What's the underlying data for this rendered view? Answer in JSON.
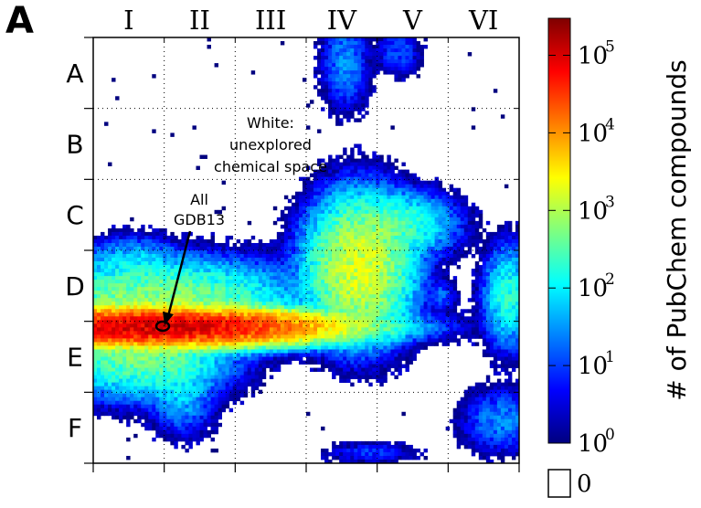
{
  "chart_data": {
    "type": "heatmap",
    "panel_label": "A",
    "column_labels": [
      "I",
      "II",
      "III",
      "IV",
      "V",
      "VI"
    ],
    "row_labels": [
      "A",
      "B",
      "C",
      "D",
      "E",
      "F"
    ],
    "annotations": [
      {
        "lines": [
          "White:",
          "unexplored",
          "chemical space"
        ]
      },
      {
        "lines": [
          "All",
          "GDB13"
        ]
      }
    ],
    "colorbar": {
      "label": "# of PubChem compounds",
      "scale": "log",
      "range": [
        1,
        300000
      ],
      "ticks": [
        {
          "base": "10",
          "exp": "0",
          "value": 1
        },
        {
          "base": "10",
          "exp": "1",
          "value": 10
        },
        {
          "base": "10",
          "exp": "2",
          "value": 100
        },
        {
          "base": "10",
          "exp": "3",
          "value": 1000
        },
        {
          "base": "10",
          "exp": "4",
          "value": 10000
        },
        {
          "base": "10",
          "exp": "5",
          "value": 100000
        }
      ],
      "zero_label": "0",
      "colormap": [
        "#00007f",
        "#0000ff",
        "#007fff",
        "#00ffff",
        "#7fff7f",
        "#ffff00",
        "#ff7f00",
        "#ff0000",
        "#7f0000"
      ]
    },
    "grid": true,
    "density_clusters": [
      {
        "region": "D-E I-II ridge",
        "col": 0.85,
        "row": 4.08,
        "sx": 0.95,
        "sy": 0.1,
        "peak": 120000
      },
      {
        "region": "D I-II",
        "col": 0.9,
        "row": 3.75,
        "sx": 0.8,
        "sy": 0.25,
        "peak": 800
      },
      {
        "region": "E I",
        "col": 0.7,
        "row": 4.45,
        "sx": 0.5,
        "sy": 0.25,
        "peak": 600
      },
      {
        "region": "C-D I",
        "col": 0.55,
        "row": 3.15,
        "sx": 0.3,
        "sy": 0.15,
        "peak": 60
      },
      {
        "region": "E-F I",
        "col": 1.25,
        "row": 5.0,
        "sx": 0.2,
        "sy": 0.25,
        "peak": 60
      },
      {
        "region": "D-E III",
        "col": 2.15,
        "row": 4.1,
        "sx": 0.15,
        "sy": 0.2,
        "peak": 40
      },
      {
        "region": "C-D IV",
        "col": 3.75,
        "row": 3.25,
        "sx": 0.3,
        "sy": 0.4,
        "peak": 2000
      },
      {
        "region": "C IV-V",
        "col": 4.25,
        "row": 2.65,
        "sx": 0.35,
        "sy": 0.2,
        "peak": 300
      },
      {
        "region": "D V",
        "col": 4.9,
        "row": 3.65,
        "sx": 0.1,
        "sy": 0.1,
        "peak": 20
      },
      {
        "region": "D VI",
        "col": 5.85,
        "row": 3.65,
        "sx": 0.15,
        "sy": 0.3,
        "peak": 200
      },
      {
        "region": "E-F VI",
        "col": 5.75,
        "row": 5.4,
        "sx": 0.25,
        "sy": 0.2,
        "peak": 30
      },
      {
        "region": "A IV",
        "col": 3.55,
        "row": 0.35,
        "sx": 0.15,
        "sy": 0.3,
        "peak": 30
      },
      {
        "region": "A V",
        "col": 4.3,
        "row": 0.2,
        "sx": 0.15,
        "sy": 0.15,
        "peak": 15
      },
      {
        "region": "F IV",
        "col": 3.9,
        "row": 5.85,
        "sx": 0.3,
        "sy": 0.07,
        "peak": 10
      }
    ]
  }
}
